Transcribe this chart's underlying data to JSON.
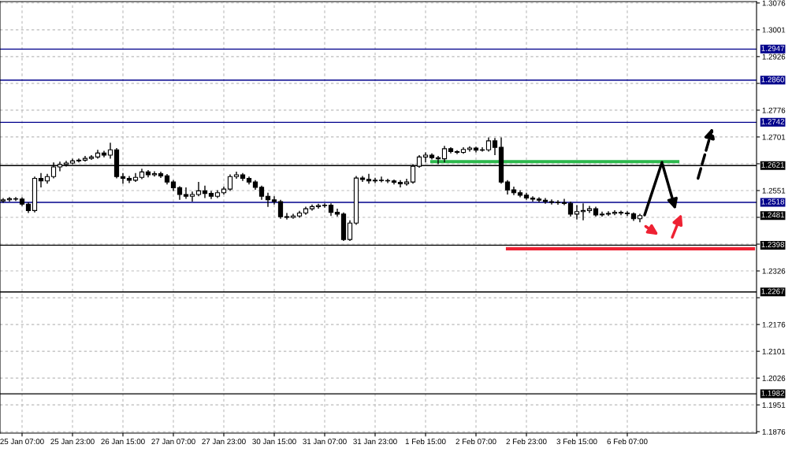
{
  "chart_data": {
    "type": "candlestick",
    "categories": [
      null,
      null,
      null,
      "25 Jan 07:00",
      null,
      null,
      null,
      null,
      null,
      null,
      null,
      "25 Jan 23:00",
      null,
      null,
      null,
      null,
      null,
      null,
      null,
      "26 Jan 15:00",
      null,
      null,
      null,
      null,
      null,
      null,
      null,
      "27 Jan 07:00",
      null,
      null,
      null,
      null,
      null,
      null,
      null,
      "27 Jan 23:00",
      null,
      null,
      null,
      null,
      null,
      null,
      null,
      "30 Jan 15:00",
      null,
      null,
      null,
      null,
      null,
      null,
      null,
      "31 Jan 07:00",
      null,
      null,
      null,
      null,
      null,
      null,
      null,
      "31 Jan 23:00",
      null,
      null,
      null,
      null,
      null,
      null,
      null,
      "1 Feb 15:00",
      null,
      null,
      null,
      null,
      null,
      null,
      null,
      "2 Feb 07:00",
      null,
      null,
      null,
      null,
      null,
      null,
      null,
      "2 Feb 23:00",
      null,
      null,
      null,
      null,
      null,
      null,
      null,
      "3 Feb 15:00",
      null,
      null,
      null,
      null,
      null,
      null,
      null,
      "6 Feb 07:00",
      null,
      null,
      null,
      null,
      null,
      null,
      null,
      null,
      null,
      null,
      null,
      null,
      null,
      null,
      null,
      null,
      null,
      null,
      null,
      null
    ],
    "ohlc": [
      [
        1.2522,
        1.253,
        1.2517,
        1.2525
      ],
      [
        1.2525,
        1.2533,
        1.252,
        1.2528
      ],
      [
        1.2528,
        1.2533,
        1.2522,
        1.2527
      ],
      [
        1.2527,
        1.2532,
        1.2508,
        1.2513
      ],
      [
        1.2513,
        1.2518,
        1.2488,
        1.2495
      ],
      [
        1.2495,
        1.259,
        1.249,
        1.2585
      ],
      [
        1.2585,
        1.26,
        1.256,
        1.2578
      ],
      [
        1.2578,
        1.2598,
        1.257,
        1.259
      ],
      [
        1.259,
        1.263,
        1.2585,
        1.2617
      ],
      [
        1.2617,
        1.2632,
        1.2605,
        1.2624
      ],
      [
        1.2624,
        1.2634,
        1.2618,
        1.2628
      ],
      [
        1.2628,
        1.264,
        1.2624,
        1.2634
      ],
      [
        1.2634,
        1.2641,
        1.263,
        1.2636
      ],
      [
        1.2636,
        1.2648,
        1.2632,
        1.2641
      ],
      [
        1.2641,
        1.265,
        1.2637,
        1.2645
      ],
      [
        1.2645,
        1.2665,
        1.264,
        1.2656
      ],
      [
        1.2656,
        1.2662,
        1.2644,
        1.265
      ],
      [
        1.265,
        1.2685,
        1.264,
        1.2665
      ],
      [
        1.2665,
        1.267,
        1.2585,
        1.259
      ],
      [
        1.259,
        1.26,
        1.257,
        1.2585
      ],
      [
        1.2585,
        1.2592,
        1.2572,
        1.258
      ],
      [
        1.258,
        1.26,
        1.2575,
        1.2588
      ],
      [
        1.2588,
        1.2612,
        1.2583,
        1.2603
      ],
      [
        1.2603,
        1.2608,
        1.2588,
        1.2595
      ],
      [
        1.2595,
        1.2605,
        1.259,
        1.2598
      ],
      [
        1.2598,
        1.2604,
        1.2586,
        1.2592
      ],
      [
        1.2592,
        1.2597,
        1.2568,
        1.2575
      ],
      [
        1.2575,
        1.258,
        1.255,
        1.2559
      ],
      [
        1.2559,
        1.2563,
        1.2525,
        1.254
      ],
      [
        1.254,
        1.256,
        1.2528,
        1.2535
      ],
      [
        1.2535,
        1.2548,
        1.252,
        1.254
      ],
      [
        1.254,
        1.2575,
        1.2535,
        1.255
      ],
      [
        1.255,
        1.2565,
        1.253,
        1.2543
      ],
      [
        1.2543,
        1.255,
        1.2527,
        1.2535
      ],
      [
        1.2535,
        1.2552,
        1.253,
        1.2545
      ],
      [
        1.2545,
        1.2562,
        1.254,
        1.2555
      ],
      [
        1.2555,
        1.2596,
        1.255,
        1.259
      ],
      [
        1.259,
        1.2604,
        1.2584,
        1.2595
      ],
      [
        1.2595,
        1.26,
        1.2578,
        1.2585
      ],
      [
        1.2585,
        1.259,
        1.2568,
        1.2575
      ],
      [
        1.2575,
        1.258,
        1.2553,
        1.256
      ],
      [
        1.256,
        1.2565,
        1.2525,
        1.2535
      ],
      [
        1.2535,
        1.2545,
        1.2505,
        1.2525
      ],
      [
        1.2525,
        1.2535,
        1.2512,
        1.252
      ],
      [
        1.252,
        1.2525,
        1.2472,
        1.2478
      ],
      [
        1.2478,
        1.2488,
        1.247,
        1.2476
      ],
      [
        1.2476,
        1.2486,
        1.2472,
        1.248
      ],
      [
        1.248,
        1.2494,
        1.2475,
        1.2488
      ],
      [
        1.2488,
        1.2506,
        1.2483,
        1.25
      ],
      [
        1.25,
        1.2512,
        1.2495,
        1.2506
      ],
      [
        1.2506,
        1.2514,
        1.25,
        1.2509
      ],
      [
        1.2509,
        1.2515,
        1.2503,
        1.251
      ],
      [
        1.251,
        1.2515,
        1.248,
        1.249
      ],
      [
        1.249,
        1.25,
        1.2478,
        1.2485
      ],
      [
        1.2485,
        1.249,
        1.241,
        1.2414
      ],
      [
        1.2414,
        1.2468,
        1.241,
        1.246
      ],
      [
        1.246,
        1.2592,
        1.2455,
        1.2586
      ],
      [
        1.2586,
        1.2592,
        1.2575,
        1.2582
      ],
      [
        1.2582,
        1.2598,
        1.257,
        1.2578
      ],
      [
        1.2578,
        1.2587,
        1.2572,
        1.258
      ],
      [
        1.258,
        1.259,
        1.2574,
        1.2579
      ],
      [
        1.2579,
        1.2584,
        1.2572,
        1.2578
      ],
      [
        1.2578,
        1.2582,
        1.2568,
        1.2574
      ],
      [
        1.2574,
        1.258,
        1.256,
        1.257
      ],
      [
        1.257,
        1.2584,
        1.2565,
        1.2575
      ],
      [
        1.2575,
        1.2625,
        1.257,
        1.2619
      ],
      [
        1.2619,
        1.265,
        1.2615,
        1.2645
      ],
      [
        1.2645,
        1.2658,
        1.263,
        1.265
      ],
      [
        1.265,
        1.2655,
        1.2638,
        1.2643
      ],
      [
        1.2643,
        1.2648,
        1.2625,
        1.264
      ],
      [
        1.264,
        1.2676,
        1.263,
        1.2668
      ],
      [
        1.2668,
        1.2672,
        1.2655,
        1.266
      ],
      [
        1.266,
        1.2664,
        1.2653,
        1.2658
      ],
      [
        1.2658,
        1.2672,
        1.2654,
        1.2666
      ],
      [
        1.2666,
        1.2675,
        1.266,
        1.267
      ],
      [
        1.267,
        1.2674,
        1.2658,
        1.2664
      ],
      [
        1.2664,
        1.2672,
        1.266,
        1.2665
      ],
      [
        1.2665,
        1.27,
        1.266,
        1.269
      ],
      [
        1.269,
        1.2698,
        1.265,
        1.2672
      ],
      [
        1.2672,
        1.27,
        1.257,
        1.2575
      ],
      [
        1.2575,
        1.258,
        1.254,
        1.2553
      ],
      [
        1.2553,
        1.2562,
        1.2538,
        1.2545
      ],
      [
        1.2545,
        1.2552,
        1.2532,
        1.2538
      ],
      [
        1.2538,
        1.2545,
        1.2525,
        1.253
      ],
      [
        1.253,
        1.2535,
        1.252,
        1.2527
      ],
      [
        1.2527,
        1.2532,
        1.2518,
        1.2524
      ],
      [
        1.2524,
        1.253,
        1.2514,
        1.252
      ],
      [
        1.252,
        1.2526,
        1.2512,
        1.2518
      ],
      [
        1.2518,
        1.2524,
        1.2511,
        1.2517
      ],
      [
        1.2517,
        1.2528,
        1.251,
        1.2515
      ],
      [
        1.2515,
        1.252,
        1.2478,
        1.2485
      ],
      [
        1.2485,
        1.251,
        1.247,
        1.2492
      ],
      [
        1.2492,
        1.2515,
        1.2468,
        1.2495
      ],
      [
        1.2495,
        1.2508,
        1.2488,
        1.25
      ],
      [
        1.25,
        1.2506,
        1.2478,
        1.2483
      ],
      [
        1.2483,
        1.2492,
        1.2478,
        1.2485
      ],
      [
        1.2485,
        1.2493,
        1.248,
        1.2487
      ],
      [
        1.2487,
        1.2496,
        1.2482,
        1.249
      ],
      [
        1.249,
        1.2495,
        1.2482,
        1.2488
      ],
      [
        1.2488,
        1.2493,
        1.248,
        1.2486
      ],
      [
        1.2486,
        1.249,
        1.2466,
        1.2472
      ],
      [
        1.2472,
        1.2486,
        1.2462,
        1.2481
      ],
      null,
      null,
      null,
      null,
      null,
      null,
      null,
      null,
      null,
      null,
      null,
      null,
      null,
      null,
      null,
      null,
      null,
      null
    ],
    "series": [
      {
        "type": "line",
        "color": "#2db84d",
        "values": [
          null,
          null,
          null,
          null,
          null,
          null,
          null,
          null,
          null,
          null,
          null,
          null,
          null,
          null,
          null,
          null,
          null,
          null,
          null,
          null,
          null,
          null,
          null,
          null,
          null,
          null,
          null,
          null,
          null,
          null,
          null,
          null,
          null,
          null,
          null,
          null,
          null,
          null,
          null,
          null,
          null,
          null,
          null,
          null,
          null,
          null,
          null,
          null,
          null,
          null,
          null,
          null,
          null,
          null,
          null,
          null,
          null,
          null,
          null,
          null,
          null,
          null,
          null,
          null,
          null,
          null,
          null,
          null,
          1.2632,
          1.2632,
          1.2632,
          1.2632,
          1.2632,
          1.2632,
          1.2632,
          1.2632,
          1.2632,
          1.2632,
          1.2632,
          1.2632,
          1.2632,
          1.2632,
          1.2632,
          1.2632,
          1.2632,
          1.2632,
          1.2632,
          1.2632,
          1.2632,
          1.2632,
          1.2632,
          1.2632,
          1.2632,
          1.2632,
          1.2632,
          1.2632,
          1.2632,
          1.2632,
          1.2632,
          1.2632,
          1.2632,
          1.2632,
          1.2632,
          1.2632,
          1.2632,
          1.2632,
          1.2632,
          1.2632,
          null,
          null,
          null,
          null,
          null,
          null,
          null,
          null,
          null,
          null,
          null,
          null
        ]
      },
      {
        "type": "line",
        "color": "#ee2233",
        "values": [
          null,
          null,
          null,
          null,
          null,
          null,
          null,
          null,
          null,
          null,
          null,
          null,
          null,
          null,
          null,
          null,
          null,
          null,
          null,
          null,
          null,
          null,
          null,
          null,
          null,
          null,
          null,
          null,
          null,
          null,
          null,
          null,
          null,
          null,
          null,
          null,
          null,
          null,
          null,
          null,
          null,
          null,
          null,
          null,
          null,
          null,
          null,
          null,
          null,
          null,
          null,
          null,
          null,
          null,
          null,
          null,
          null,
          null,
          null,
          null,
          null,
          null,
          null,
          null,
          null,
          null,
          null,
          null,
          null,
          null,
          null,
          null,
          null,
          null,
          null,
          null,
          null,
          null,
          null,
          null,
          1.2388,
          1.2388,
          1.2388,
          1.2388,
          1.2388,
          1.2388,
          1.2388,
          1.2388,
          1.2388,
          1.2388,
          1.2388,
          1.2388,
          1.2388,
          1.2388,
          1.2388,
          1.2388,
          1.2388,
          1.2388,
          1.2388,
          1.2388,
          1.2388,
          1.2388,
          1.2388,
          1.2388,
          1.2388,
          1.2388,
          1.2388,
          1.2388,
          1.2388,
          1.2388,
          1.2388,
          1.2388,
          1.2388,
          1.2388,
          1.2388,
          1.2388,
          1.2388,
          1.2388,
          1.2388,
          1.2388
        ]
      }
    ],
    "ylim": [
      1.1872,
      1.308
    ],
    "yticks": [
      1.1876,
      1.1951,
      1.2026,
      1.2101,
      1.2176,
      {
        "value": 1.2251,
        "label": null
      },
      1.2326,
      {
        "value": 1.2401,
        "label": null
      },
      {
        "value": 1.2476,
        "label": null
      },
      1.2551,
      {
        "value": 1.2626,
        "label": null
      },
      1.2701,
      1.2776,
      {
        "value": 1.2851,
        "label": null
      },
      1.2926,
      1.3001,
      1.3076
    ],
    "ref_lines": [
      {
        "axis": "y",
        "value": 1.2947,
        "label": "1.2947",
        "color": "#00008b"
      },
      {
        "axis": "y",
        "value": 1.286,
        "label": "1.2860",
        "color": "#00008b"
      },
      {
        "axis": "y",
        "value": 1.2742,
        "label": "1.2742",
        "color": "#00008b"
      },
      {
        "axis": "y",
        "value": 1.2621,
        "label": "1.2621",
        "color": "#000000"
      },
      {
        "axis": "y",
        "value": 1.2518,
        "label": "1.2518",
        "color": "#00008b"
      },
      {
        "axis": "y",
        "value": 1.2398,
        "label": "1.2398",
        "color": "#000000"
      },
      {
        "axis": "y",
        "value": 1.2267,
        "label": "1.2267",
        "color": "#000000"
      },
      {
        "axis": "y",
        "value": 1.1982,
        "label": "1.1982",
        "color": "#000000"
      }
    ],
    "annotations": [
      "1.2481"
    ],
    "grid": true
  }
}
